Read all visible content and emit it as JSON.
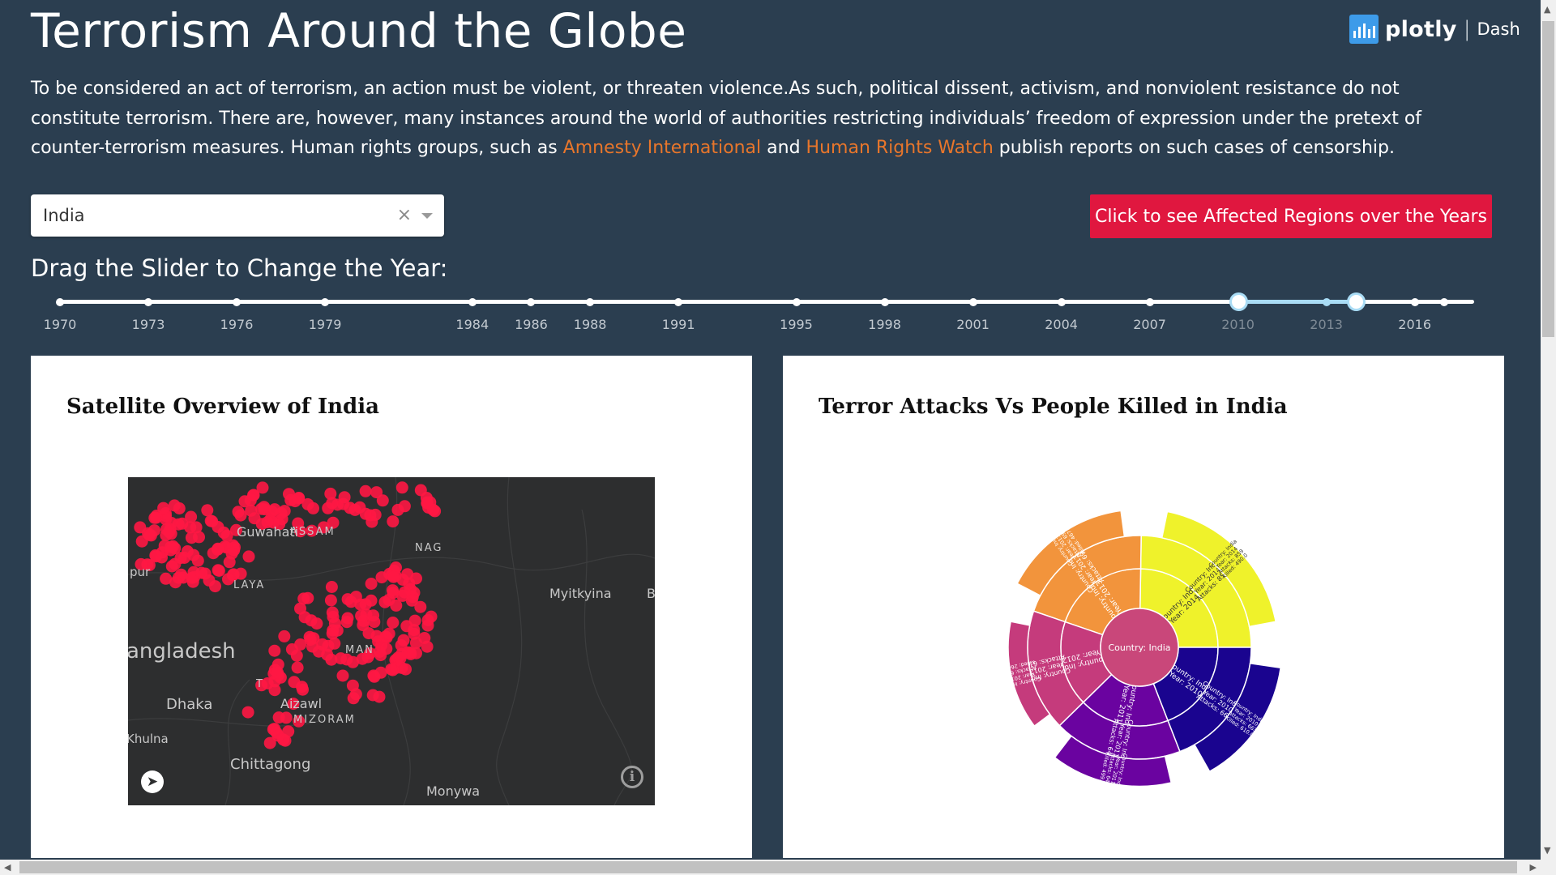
{
  "header": {
    "title": "Terrorism Around the Globe",
    "brand_name": "plotly",
    "brand_sep": "|",
    "brand_product": "Dash"
  },
  "intro": {
    "text_1": "To be considered an act of terrorism, an action must be violent, or threaten violence.As such, political dissent, activism, and nonviolent resistance do not constitute terrorism. There are, however, many instances around the world of authorities restricting individuals’ freedom of expression under the pretext of counter-terrorism measures. Human rights groups, such as ",
    "link_1": "Amnesty International",
    "text_2": " and ",
    "link_2": "Human Rights Watch",
    "text_3": " publish reports on such cases of censorship."
  },
  "country_dropdown": {
    "value": "India",
    "clear_glyph": "×"
  },
  "affected_button": {
    "label": "Click to see Affected Regions over the Years"
  },
  "slider": {
    "label": "Drag the Slider to Change the Year:",
    "min": 1970,
    "max": 2017,
    "range": [
      2010,
      2014
    ],
    "marks": [
      1970,
      1973,
      1976,
      1979,
      1984,
      1986,
      1988,
      1991,
      1995,
      1998,
      2001,
      2004,
      2007,
      2010,
      2013,
      2016
    ],
    "extra_dots": [
      2017
    ]
  },
  "map_card": {
    "title": "Satellite Overview of India",
    "labels": {
      "guwahati": "Guwahati",
      "assam": "ASSAM",
      "meghalaya_frag": "LAYA",
      "nagaland_frag": "NAG",
      "manipur_frag": "MAN",
      "mizoram": "MIZORAM",
      "aizawl_frag": "Aizawl",
      "jalpaiguri_frag": "pur",
      "tripura_frag": "T",
      "myitkyina": "Myitkyina",
      "bangladesh": "angladesh",
      "dhaka": "Dhaka",
      "khulna": "Khulna",
      "chittagong": "Chittagong",
      "monywa": "Monywa",
      "edge_b": "B"
    },
    "marker_color": "#ff1744"
  },
  "sunburst_card": {
    "title": "Terror Attacks Vs People Killed in India"
  },
  "chart_data": {
    "type": "sunburst",
    "root": "Country: India",
    "years": [
      {
        "year": 2010,
        "attacks": 663,
        "killed": 610.0,
        "color": "#1a048f"
      },
      {
        "year": 2011,
        "attacks": 644,
        "killed": 499.0,
        "color": "#6a03a0"
      },
      {
        "year": 2012,
        "attacks": 611,
        "killed": 264.0,
        "color": "#c53b7c"
      },
      {
        "year": 2013,
        "attacks": 694,
        "killed": 467.0,
        "color": "#f2943c"
      },
      {
        "year": 2014,
        "attacks": 859,
        "killed": 490.0,
        "color": "#eff22b"
      }
    ],
    "root_color": "#c9477a"
  }
}
